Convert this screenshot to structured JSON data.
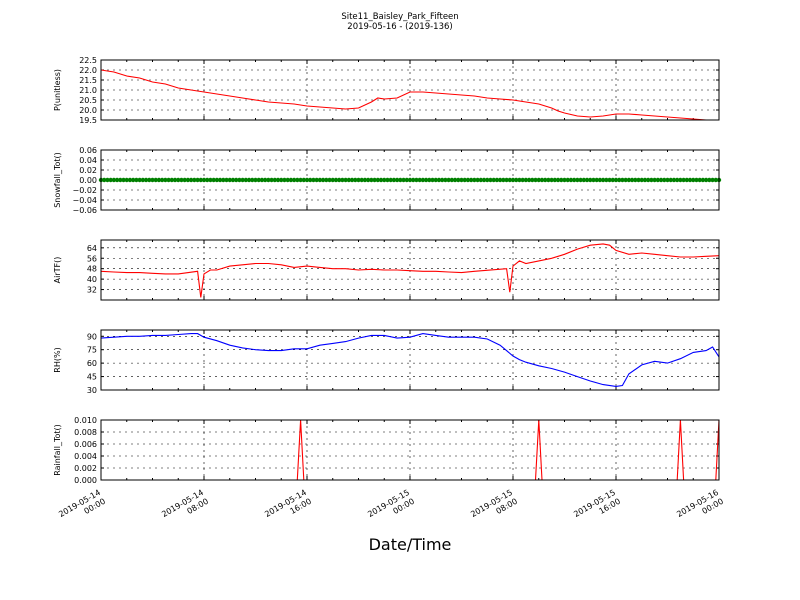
{
  "figure": {
    "title": "Site11_Baisley_Park_Fifteen",
    "subtitle": "2019-05-16 - (2019-136)",
    "xlabel": "Date/Time",
    "colors": {
      "red": "#ff0000",
      "green": "#008000",
      "blue": "#0000ff",
      "axis": "#000000",
      "grid": "#000000"
    }
  },
  "chart_data": [
    {
      "type": "line",
      "ylabel": "P(unitless)",
      "ylim": [
        19.5,
        22.5
      ],
      "yticks": [
        "19.5",
        "20.0",
        "20.5",
        "21.0",
        "21.5",
        "22.0",
        "22.5"
      ],
      "ytick_values": [
        19.5,
        20.0,
        20.5,
        21.0,
        21.5,
        22.0,
        22.5
      ],
      "xlim": [
        0,
        48
      ],
      "xticks": [
        "2019-05-14 00:00",
        "2019-05-14 08:00",
        "2019-05-14 16:00",
        "2019-05-15 00:00",
        "2019-05-15 08:00",
        "2019-05-15 16:00",
        "2019-05-16 00:00"
      ],
      "grid": true,
      "color": "#ff0000",
      "x": [
        0,
        1,
        2,
        3,
        4,
        5,
        6,
        7,
        8,
        9,
        10,
        11,
        12,
        13,
        14,
        15,
        16,
        17,
        18,
        19,
        20,
        21,
        21.5,
        22,
        23,
        24,
        25,
        26,
        27,
        28,
        29,
        30,
        31,
        32,
        33,
        34,
        35,
        35.5,
        36,
        37,
        38,
        39,
        40,
        41,
        42,
        43,
        44,
        45,
        46,
        47,
        48
      ],
      "values": [
        22.0,
        21.9,
        21.7,
        21.6,
        21.4,
        21.3,
        21.1,
        21.0,
        20.9,
        20.8,
        20.7,
        20.6,
        20.5,
        20.4,
        20.35,
        20.3,
        20.2,
        20.15,
        20.1,
        20.05,
        20.1,
        20.4,
        20.6,
        20.55,
        20.6,
        20.9,
        20.9,
        20.85,
        20.8,
        20.75,
        20.7,
        20.6,
        20.55,
        20.5,
        20.4,
        20.3,
        20.1,
        19.95,
        19.85,
        19.7,
        19.65,
        19.7,
        19.8,
        19.8,
        19.75,
        19.7,
        19.65,
        19.6,
        19.55,
        19.5,
        19.5
      ]
    },
    {
      "type": "scatter",
      "ylabel": "Snowfall_Tot()",
      "ylim": [
        -0.06,
        0.06
      ],
      "yticks": [
        "−0.06",
        "−0.04",
        "−0.02",
        "0.00",
        "0.02",
        "0.04",
        "0.06"
      ],
      "ytick_values": [
        -0.06,
        -0.04,
        -0.02,
        0.0,
        0.02,
        0.04,
        0.06
      ],
      "xlim": [
        0,
        48
      ],
      "grid": true,
      "color": "#008000",
      "constant_value": 0.0,
      "x_range": [
        0,
        48
      ],
      "interval_minutes": 15
    },
    {
      "type": "line",
      "ylabel": "AirTF()",
      "ylim": [
        24,
        70
      ],
      "yticks": [
        "32",
        "40",
        "48",
        "56",
        "64"
      ],
      "ytick_values": [
        32,
        40,
        48,
        56,
        64
      ],
      "xlim": [
        0,
        48
      ],
      "grid": true,
      "color": "#ff0000",
      "x": [
        0,
        1,
        2,
        3,
        4,
        5,
        6,
        7.5,
        7.75,
        8,
        8.5,
        9,
        10,
        11,
        12,
        13,
        14,
        15,
        16,
        17,
        18,
        19,
        20,
        21,
        22,
        23,
        24,
        25,
        26,
        27,
        28,
        29,
        31.5,
        31.75,
        32,
        32.5,
        33,
        34,
        35,
        36,
        37,
        38,
        39,
        39.5,
        40,
        41,
        42,
        43,
        44,
        45,
        46,
        47,
        48
      ],
      "values": [
        46,
        45.5,
        45,
        45,
        44.5,
        44,
        44,
        46,
        26,
        44,
        47,
        47,
        50,
        51,
        52,
        52,
        51,
        49,
        50,
        49,
        48,
        48,
        47,
        47.5,
        47,
        47,
        46.5,
        46,
        46,
        45.5,
        45,
        46,
        48,
        30,
        50,
        54,
        52,
        54,
        56,
        59,
        63,
        66,
        67,
        66,
        62,
        59,
        60,
        59,
        58,
        57,
        57,
        57.5,
        58
      ]
    },
    {
      "type": "line",
      "ylabel": "RH(%)",
      "ylim": [
        30,
        97
      ],
      "yticks": [
        "30",
        "45",
        "60",
        "75",
        "90"
      ],
      "ytick_values": [
        30,
        45,
        60,
        75,
        90
      ],
      "xlim": [
        0,
        48
      ],
      "grid": true,
      "color": "#0000ff",
      "x": [
        0,
        1,
        2,
        3,
        4,
        5,
        6,
        7,
        7.5,
        8,
        9,
        10,
        11,
        12,
        13,
        14,
        15,
        16,
        17,
        18,
        19,
        20,
        21,
        22,
        23,
        24,
        25,
        26,
        27,
        28,
        29,
        30,
        31,
        32,
        32.5,
        33,
        34,
        35,
        36,
        37,
        38,
        39,
        40,
        40.5,
        41,
        42,
        43,
        44,
        45,
        46,
        47,
        47.5,
        48
      ],
      "values": [
        88,
        89,
        90,
        90,
        91,
        91,
        92,
        93,
        93,
        89,
        85,
        80,
        77,
        75,
        74,
        74,
        76,
        76,
        80,
        82,
        84,
        88,
        91,
        91,
        88,
        89,
        93,
        91,
        89,
        89,
        89,
        87,
        80,
        68,
        64,
        61,
        57,
        54,
        50,
        45,
        40,
        36,
        34,
        35,
        48,
        58,
        62,
        60,
        65,
        72,
        74,
        78,
        67
      ]
    },
    {
      "type": "line",
      "ylabel": "Rainfall_Tot()",
      "ylim": [
        0,
        0.01
      ],
      "yticks": [
        "0.000",
        "0.002",
        "0.004",
        "0.006",
        "0.008",
        "0.010"
      ],
      "ytick_values": [
        0,
        0.002,
        0.004,
        0.006,
        0.008,
        0.01
      ],
      "xlim": [
        0,
        48
      ],
      "grid": true,
      "color": "#ff0000",
      "x": [
        0,
        15.25,
        15.5,
        15.75,
        33.75,
        34,
        34.25,
        44.75,
        45,
        45.25,
        47.75,
        48
      ],
      "values": [
        0,
        0,
        0.01,
        0,
        0,
        0.01,
        0,
        0,
        0.01,
        0,
        0,
        0.01
      ]
    }
  ]
}
